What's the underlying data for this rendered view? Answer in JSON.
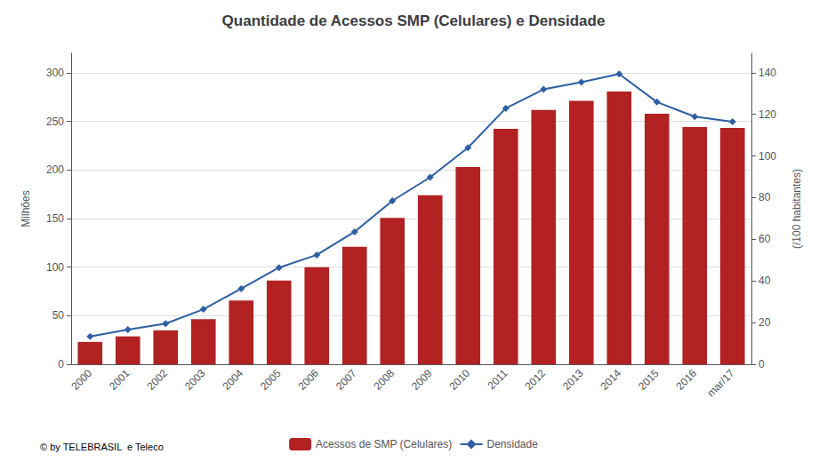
{
  "chart_data": {
    "type": "bar",
    "title": "Quantidade de Acessos SMP (Celulares) e Densidade",
    "categories": [
      "2000",
      "2001",
      "2002",
      "2003",
      "2004",
      "2005",
      "2006",
      "2007",
      "2008",
      "2009",
      "2010",
      "2011",
      "2012",
      "2013",
      "2014",
      "2015",
      "2016",
      "mar/17"
    ],
    "series": [
      {
        "name": "Acessos de SMP (Celulares)",
        "type": "bar",
        "color": "#B22222",
        "values": [
          23,
          28.7,
          34.9,
          46.4,
          65.6,
          86.2,
          99.9,
          120.9,
          150.6,
          173.9,
          202.9,
          242.2,
          261.8,
          271.1,
          280.7,
          257.8,
          244.1,
          243.2
        ]
      },
      {
        "name": "Densidade",
        "type": "line",
        "axis": "y2",
        "color": "#2E5FA3",
        "marker": "diamond",
        "values": [
          13.3,
          16.6,
          19.5,
          26.4,
          36.3,
          46.4,
          52.5,
          63.6,
          78.5,
          89.8,
          104.0,
          122.9,
          132.0,
          135.4,
          139.4,
          125.9,
          118.9,
          116.5
        ]
      }
    ],
    "ylabel": "Milhões",
    "y2label": "(/100 habitantes)",
    "ylim": [
      0,
      320
    ],
    "yticks": [
      0,
      50,
      100,
      150,
      200,
      250,
      300
    ],
    "y2lim": [
      0,
      149.3
    ],
    "y2ticks": [
      0,
      20,
      40,
      60,
      80,
      100,
      120,
      140
    ],
    "grid": true,
    "legend": "bottom",
    "annotations": [
      "© by TELEBRASIL  e Teleco"
    ]
  }
}
